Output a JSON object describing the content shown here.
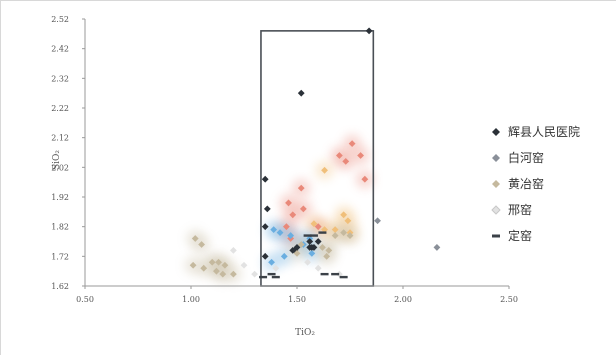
{
  "chart_data": {
    "type": "scatter",
    "xlabel": "TiO₂",
    "ylabel": "SiO₂",
    "x_ticks": [
      "0.50",
      "1.00",
      "1.50",
      "2.00",
      "2.50"
    ],
    "y_ticks": [
      "1.62",
      "1.72",
      "1.82",
      "1.92",
      "2.02",
      "2.12",
      "2.22",
      "2.32",
      "2.42",
      "2.52"
    ],
    "xlim": [
      0.5,
      2.5
    ],
    "ylim": [
      1.62,
      2.52
    ],
    "grid": false,
    "legend_position": "right",
    "reference_box": {
      "x": [
        1.33,
        1.86
      ],
      "y": [
        1.62,
        2.48
      ]
    },
    "series": [
      {
        "name": "辉县人民医院",
        "color": "#2b3138",
        "marker": "diamond",
        "points": [
          [
            1.35,
            1.98
          ],
          [
            1.36,
            1.88
          ],
          [
            1.35,
            1.82
          ],
          [
            1.52,
            2.27
          ],
          [
            1.35,
            1.72
          ],
          [
            1.48,
            1.74
          ],
          [
            1.49,
            1.74
          ],
          [
            1.56,
            1.77
          ],
          [
            1.56,
            1.75
          ],
          [
            1.57,
            1.75
          ],
          [
            1.58,
            1.75
          ],
          [
            1.6,
            1.77
          ],
          [
            1.5,
            1.75
          ],
          [
            1.84,
            2.48
          ]
        ]
      },
      {
        "name": "白河窑",
        "color": "#8a9099",
        "marker": "diamond",
        "points": [
          [
            1.88,
            1.84
          ],
          [
            2.16,
            1.75
          ]
        ]
      },
      {
        "name": "黄冶窑",
        "color": "#c5b99e",
        "marker": "diamond",
        "points": [
          [
            1.02,
            1.78
          ],
          [
            1.05,
            1.76
          ],
          [
            1.1,
            1.7
          ],
          [
            1.13,
            1.7
          ],
          [
            1.16,
            1.69
          ],
          [
            1.06,
            1.68
          ],
          [
            1.12,
            1.67
          ],
          [
            1.15,
            1.66
          ],
          [
            1.2,
            1.66
          ],
          [
            1.01,
            1.69
          ],
          [
            1.5,
            1.73
          ],
          [
            1.52,
            1.76
          ],
          [
            1.62,
            1.75
          ],
          [
            1.64,
            1.72
          ],
          [
            1.65,
            1.74
          ],
          [
            1.68,
            1.79
          ],
          [
            1.72,
            1.8
          ],
          [
            1.75,
            1.79
          ]
        ]
      },
      {
        "name": "邢窑",
        "color": "#e2e2e2",
        "marker": "diamond",
        "points": [
          [
            1.2,
            1.74
          ],
          [
            1.25,
            1.69
          ],
          [
            1.3,
            1.66
          ],
          [
            1.4,
            1.68
          ],
          [
            1.55,
            1.7
          ],
          [
            1.6,
            1.68
          ],
          [
            1.7,
            1.66
          ]
        ]
      },
      {
        "name": "定窑",
        "color": "#3b4148",
        "marker": "dash",
        "points": [
          [
            1.55,
            1.79
          ],
          [
            1.58,
            1.79
          ],
          [
            1.62,
            1.8
          ],
          [
            1.63,
            1.66
          ],
          [
            1.68,
            1.66
          ],
          [
            1.72,
            1.65
          ],
          [
            1.34,
            1.65
          ],
          [
            1.4,
            1.65
          ],
          [
            1.38,
            1.66
          ]
        ]
      }
    ],
    "highlight_series": [
      {
        "color": "#e9897a",
        "marker": "diamond",
        "points": [
          [
            1.46,
            1.9
          ],
          [
            1.52,
            1.95
          ],
          [
            1.48,
            1.86
          ],
          [
            1.53,
            1.88
          ],
          [
            1.7,
            2.06
          ],
          [
            1.73,
            2.04
          ],
          [
            1.76,
            2.1
          ],
          [
            1.8,
            2.06
          ],
          [
            1.82,
            1.98
          ],
          [
            1.45,
            1.82
          ],
          [
            1.6,
            1.82
          ],
          [
            1.47,
            1.78
          ]
        ]
      },
      {
        "color": "#f0bf7a",
        "marker": "diamond",
        "points": [
          [
            1.63,
            2.01
          ],
          [
            1.72,
            1.86
          ],
          [
            1.74,
            1.84
          ],
          [
            1.75,
            1.8
          ],
          [
            1.68,
            1.81
          ],
          [
            1.58,
            1.83
          ],
          [
            1.63,
            1.81
          ]
        ]
      },
      {
        "color": "#6aaee0",
        "marker": "diamond",
        "points": [
          [
            1.39,
            1.81
          ],
          [
            1.42,
            1.8
          ],
          [
            1.47,
            1.79
          ],
          [
            1.38,
            1.7
          ],
          [
            1.44,
            1.72
          ],
          [
            1.53,
            1.76
          ],
          [
            1.56,
            1.78
          ],
          [
            1.57,
            1.73
          ]
        ]
      }
    ]
  }
}
